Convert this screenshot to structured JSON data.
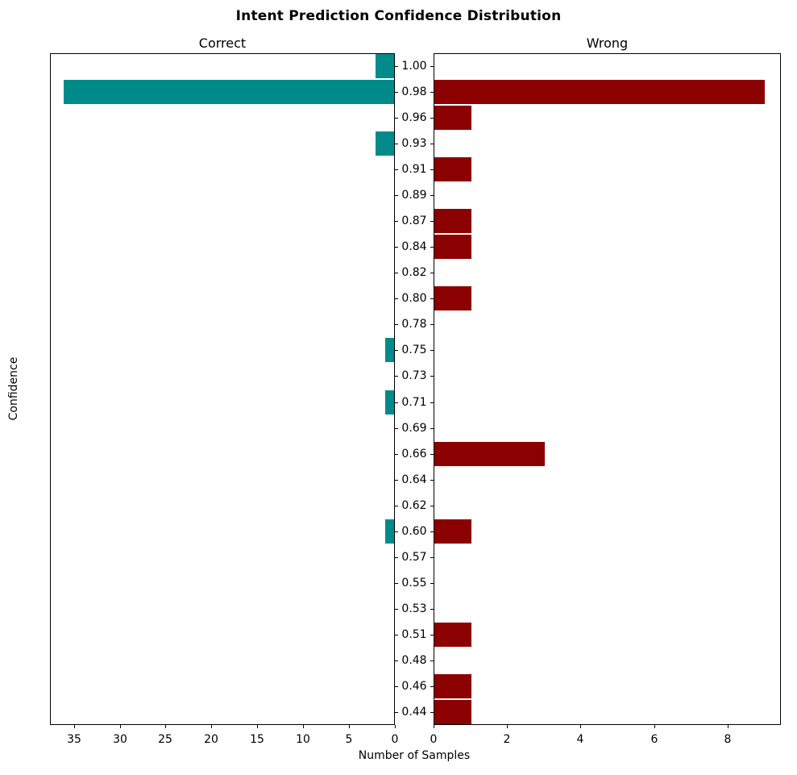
{
  "chart_data": {
    "type": "bar",
    "orientation": "horizontal",
    "layout": "back-to-back butterfly (two mirrored panels)",
    "title": "Intent Prediction Confidence Distribution",
    "xlabel": "Number of Samples",
    "ylabel": "Confidence",
    "grid": false,
    "legend": false,
    "categories": [
      "1.00",
      "0.98",
      "0.96",
      "0.93",
      "0.91",
      "0.89",
      "0.87",
      "0.84",
      "0.82",
      "0.80",
      "0.78",
      "0.75",
      "0.73",
      "0.71",
      "0.69",
      "0.66",
      "0.64",
      "0.62",
      "0.60",
      "0.57",
      "0.55",
      "0.53",
      "0.51",
      "0.48",
      "0.46",
      "0.44"
    ],
    "series": [
      {
        "name": "Correct",
        "color": "#008b8b",
        "values": [
          2,
          36,
          0,
          2,
          0,
          0,
          0,
          0,
          0,
          0,
          0,
          1,
          0,
          1,
          0,
          0,
          0,
          0,
          1,
          0,
          0,
          0,
          0,
          0,
          0,
          0
        ],
        "axis": {
          "xlim": [
            37.6,
            0
          ],
          "inverted": true,
          "ticks": [
            35,
            30,
            25,
            20,
            15,
            10,
            5,
            0
          ]
        }
      },
      {
        "name": "Wrong",
        "color": "#8b0000",
        "values": [
          0,
          9,
          1,
          0,
          1,
          0,
          1,
          1,
          0,
          1,
          0,
          0,
          0,
          0,
          0,
          3,
          0,
          0,
          1,
          0,
          0,
          0,
          1,
          0,
          1,
          1
        ],
        "axis": {
          "xlim": [
            0,
            9.45
          ],
          "inverted": false,
          "ticks": [
            0,
            2,
            4,
            6,
            8
          ]
        }
      }
    ]
  }
}
